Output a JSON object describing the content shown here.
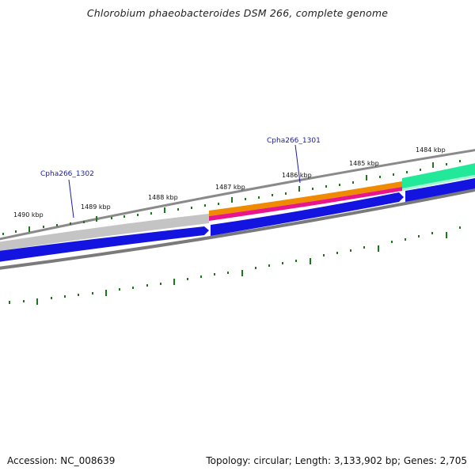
{
  "title": "Chlorobium phaeobacteroides DSM 266, complete genome",
  "footer": {
    "accession": "Accession: NC_008639",
    "topology": "Topology: circular; Length: 3,133,902 bp; Genes: 2,705"
  },
  "ticks": [
    {
      "label": "1484 kbp"
    },
    {
      "label": "1485 kbp"
    },
    {
      "label": "1486 kbp"
    },
    {
      "label": "1487 kbp"
    },
    {
      "label": "1488 kbp"
    },
    {
      "label": "1489 kbp"
    },
    {
      "label": "1490 kbp"
    }
  ],
  "gene_labels": [
    {
      "label": "Cpha266_1301"
    },
    {
      "label": "Cpha266_1302"
    }
  ],
  "colors": {
    "forward_gene_grey": "#bfbfbf",
    "forward_gene_orange": "#f08a00",
    "forward_gene_magenta": "#e8158c",
    "forward_gene_green": "#22e89a",
    "reverse_gene_blue": "#1414e0",
    "backbone_grey": "#808080",
    "tick_green": "#1a7a1a",
    "gene_label_blue": "#1a1aa6"
  }
}
